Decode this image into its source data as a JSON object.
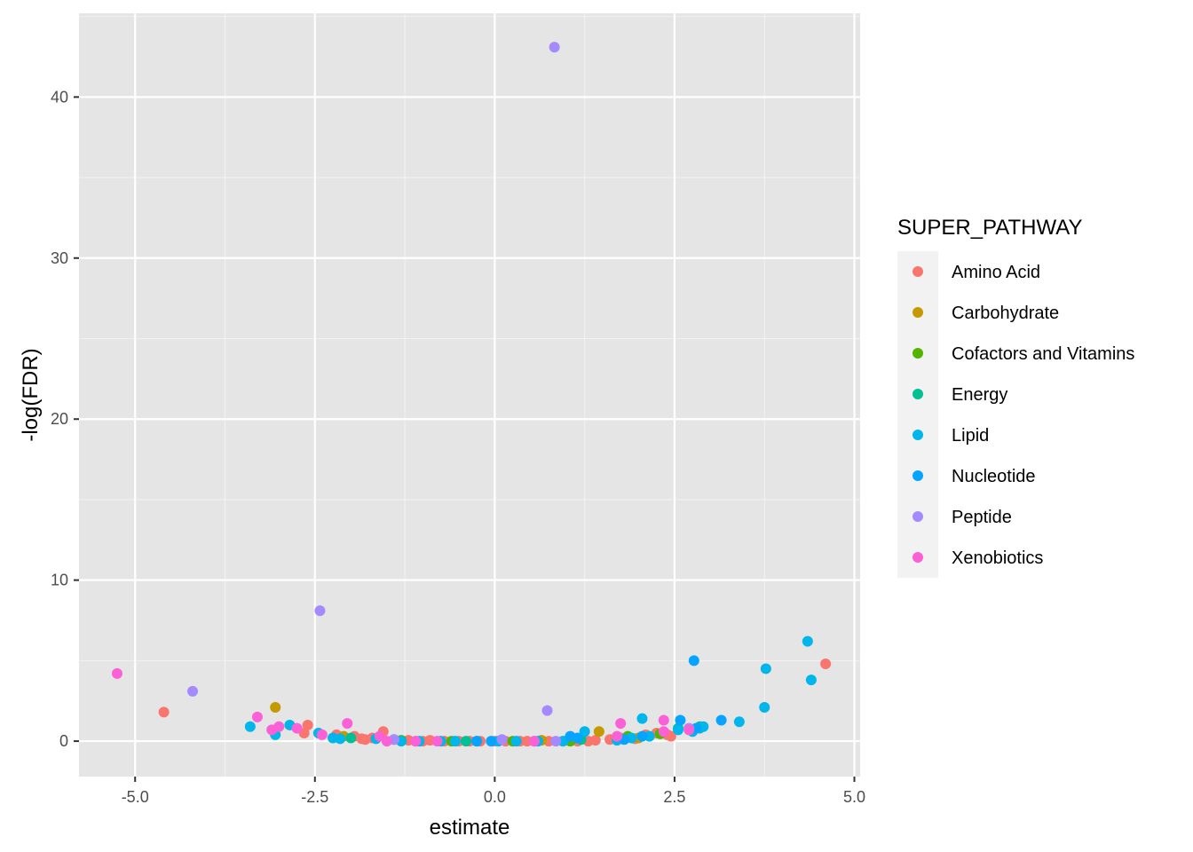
{
  "chart_data": {
    "type": "scatter",
    "title": "",
    "xlabel": "estimate",
    "ylabel": "-log(FDR)",
    "xlim": [
      -5.78,
      5.08
    ],
    "ylim": [
      -2.2,
      45.2
    ],
    "x_ticks": [
      -5.0,
      -2.5,
      0.0,
      2.5,
      5.0
    ],
    "x_tick_labels": [
      "-5.0",
      "-2.5",
      "0.0",
      "2.5",
      "5.0"
    ],
    "y_ticks": [
      0,
      10,
      20,
      30,
      40
    ],
    "y_tick_labels": [
      "0",
      "10",
      "20",
      "30",
      "40"
    ],
    "grid": true,
    "panel_background": "#e5e5e5",
    "legend": {
      "title": "SUPER_PATHWAY",
      "position": "right"
    },
    "series": [
      {
        "name": "Amino Acid",
        "color": "#F8766D",
        "points": [
          [
            -4.6,
            1.8
          ],
          [
            4.6,
            4.8
          ],
          [
            -2.6,
            1.0
          ],
          [
            -2.65,
            0.5
          ],
          [
            -2.2,
            0.4
          ],
          [
            -1.95,
            0.3
          ],
          [
            -1.85,
            0.15
          ],
          [
            -1.7,
            0.2
          ],
          [
            -1.55,
            0.6
          ],
          [
            -1.4,
            0.1
          ],
          [
            -1.2,
            0.05
          ],
          [
            -1.0,
            0.0
          ],
          [
            -0.9,
            0.05
          ],
          [
            -0.7,
            0.0
          ],
          [
            -0.5,
            0.0
          ],
          [
            -0.35,
            0.0
          ],
          [
            -0.2,
            0.0
          ],
          [
            0.0,
            0.0
          ],
          [
            0.15,
            0.0
          ],
          [
            0.35,
            0.0
          ],
          [
            0.55,
            0.0
          ],
          [
            0.75,
            0.0
          ],
          [
            0.95,
            0.0
          ],
          [
            1.15,
            0.0
          ],
          [
            1.4,
            0.05
          ],
          [
            1.6,
            0.1
          ],
          [
            1.75,
            0.2
          ],
          [
            1.95,
            0.15
          ],
          [
            2.1,
            0.4
          ],
          [
            2.25,
            0.5
          ],
          [
            2.4,
            0.4
          ],
          [
            2.45,
            0.3
          ],
          [
            -1.8,
            0.1
          ],
          [
            -1.1,
            0.0
          ],
          [
            0.45,
            0.0
          ],
          [
            1.3,
            0.0
          ]
        ]
      },
      {
        "name": "Carbohydrate",
        "color": "#C49A00",
        "points": [
          [
            -3.05,
            2.1
          ],
          [
            1.45,
            0.6
          ],
          [
            -2.1,
            0.3
          ],
          [
            0.65,
            0.05
          ],
          [
            2.0,
            0.2
          ]
        ]
      },
      {
        "name": "Cofactors and Vitamins",
        "color": "#53B400",
        "points": [
          [
            -1.3,
            0.05
          ],
          [
            -0.6,
            0.0
          ],
          [
            0.25,
            0.0
          ],
          [
            1.05,
            0.0
          ],
          [
            1.85,
            0.3
          ],
          [
            2.3,
            0.45
          ]
        ]
      },
      {
        "name": "Energy",
        "color": "#00C094",
        "points": [
          [
            -2.0,
            0.2
          ],
          [
            -0.4,
            0.0
          ],
          [
            1.2,
            0.1
          ],
          [
            2.55,
            0.8
          ],
          [
            2.85,
            0.9
          ]
        ]
      },
      {
        "name": "Lipid",
        "color": "#00B6EB",
        "points": [
          [
            -3.4,
            0.9
          ],
          [
            -3.05,
            0.4
          ],
          [
            -2.85,
            1.0
          ],
          [
            -2.45,
            0.5
          ],
          [
            -2.25,
            0.2
          ],
          [
            -2.15,
            0.15
          ],
          [
            -1.65,
            0.15
          ],
          [
            -1.3,
            0.0
          ],
          [
            -1.05,
            0.0
          ],
          [
            -0.75,
            0.0
          ],
          [
            -0.55,
            0.0
          ],
          [
            -0.25,
            0.0
          ],
          [
            0.05,
            0.0
          ],
          [
            0.3,
            0.0
          ],
          [
            0.6,
            0.0
          ],
          [
            0.95,
            0.0
          ],
          [
            1.25,
            0.6
          ],
          [
            1.7,
            0.05
          ],
          [
            1.9,
            0.2
          ],
          [
            2.05,
            1.4
          ],
          [
            2.15,
            0.3
          ],
          [
            2.55,
            0.7
          ],
          [
            2.75,
            0.6
          ],
          [
            2.85,
            0.8
          ],
          [
            2.9,
            0.9
          ],
          [
            3.4,
            1.2
          ],
          [
            3.75,
            2.1
          ],
          [
            3.77,
            4.5
          ],
          [
            4.35,
            6.2
          ],
          [
            4.4,
            3.8
          ]
        ]
      },
      {
        "name": "Nucleotide",
        "color": "#06A4FF",
        "points": [
          [
            2.77,
            5.0
          ],
          [
            2.58,
            1.3
          ],
          [
            3.15,
            1.3
          ],
          [
            -0.25,
            0.0
          ],
          [
            -0.05,
            0.0
          ],
          [
            1.05,
            0.3
          ],
          [
            1.15,
            0.2
          ],
          [
            1.8,
            0.1
          ],
          [
            2.05,
            0.3
          ],
          [
            2.8,
            0.8
          ]
        ]
      },
      {
        "name": "Peptide",
        "color": "#A58AFF",
        "points": [
          [
            0.83,
            43.1
          ],
          [
            -2.43,
            8.1
          ],
          [
            -4.2,
            3.1
          ],
          [
            0.73,
            1.9
          ],
          [
            -1.4,
            0.1
          ],
          [
            0.1,
            0.1
          ],
          [
            0.85,
            0.0
          ],
          [
            2.7,
            0.8
          ]
        ]
      },
      {
        "name": "Xenobiotics",
        "color": "#FB61D7",
        "points": [
          [
            -5.25,
            4.2
          ],
          [
            -3.3,
            1.5
          ],
          [
            -3.1,
            0.7
          ],
          [
            -3.0,
            0.9
          ],
          [
            -2.75,
            0.8
          ],
          [
            -2.4,
            0.4
          ],
          [
            -2.05,
            1.1
          ],
          [
            -1.6,
            0.3
          ],
          [
            -1.5,
            0.0
          ],
          [
            -1.1,
            0.0
          ],
          [
            -0.8,
            0.0
          ],
          [
            0.55,
            0.0
          ],
          [
            1.75,
            1.1
          ],
          [
            1.7,
            0.3
          ],
          [
            2.35,
            1.3
          ],
          [
            2.35,
            0.6
          ],
          [
            2.7,
            0.7
          ]
        ]
      }
    ]
  }
}
